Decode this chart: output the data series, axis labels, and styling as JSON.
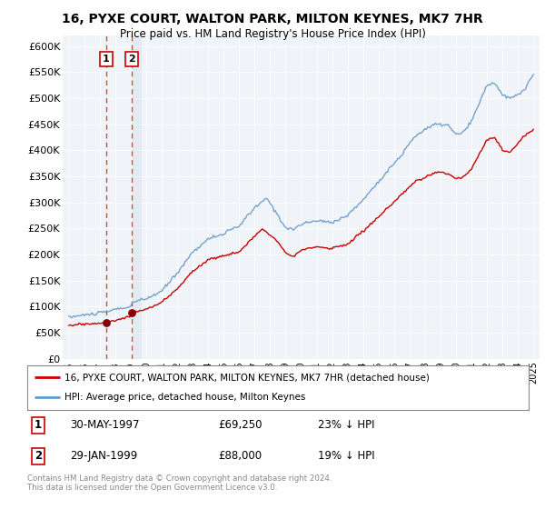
{
  "title": "16, PYXE COURT, WALTON PARK, MILTON KEYNES, MK7 7HR",
  "subtitle": "Price paid vs. HM Land Registry's House Price Index (HPI)",
  "ylim": [
    0,
    620000
  ],
  "yticks": [
    0,
    50000,
    100000,
    150000,
    200000,
    250000,
    300000,
    350000,
    400000,
    450000,
    500000,
    550000,
    600000
  ],
  "ytick_labels": [
    "£0",
    "£50K",
    "£100K",
    "£150K",
    "£200K",
    "£250K",
    "£300K",
    "£350K",
    "£400K",
    "£450K",
    "£500K",
    "£550K",
    "£600K"
  ],
  "purchase1_date": 1997.41,
  "purchase1_price": 69250,
  "purchase2_date": 1999.08,
  "purchase2_price": 88000,
  "line_color_property": "#cc0000",
  "line_color_hpi": "#6699cc",
  "vline_color": "#dd4444",
  "purchase_marker_color": "#880000",
  "legend_label_property": "16, PYXE COURT, WALTON PARK, MILTON KEYNES, MK7 7HR (detached house)",
  "legend_label_hpi": "HPI: Average price, detached house, Milton Keynes",
  "note1_date": "30-MAY-1997",
  "note1_price": "£69,250",
  "note1_hpi": "23% ↓ HPI",
  "note2_date": "29-JAN-1999",
  "note2_price": "£88,000",
  "note2_hpi": "19% ↓ HPI",
  "footer": "Contains HM Land Registry data © Crown copyright and database right 2024.\nThis data is licensed under the Open Government Licence v3.0.",
  "bg_color": "#ffffff",
  "plot_bg_color": "#f0f4f8",
  "shade2_color": "#ccd8e8"
}
